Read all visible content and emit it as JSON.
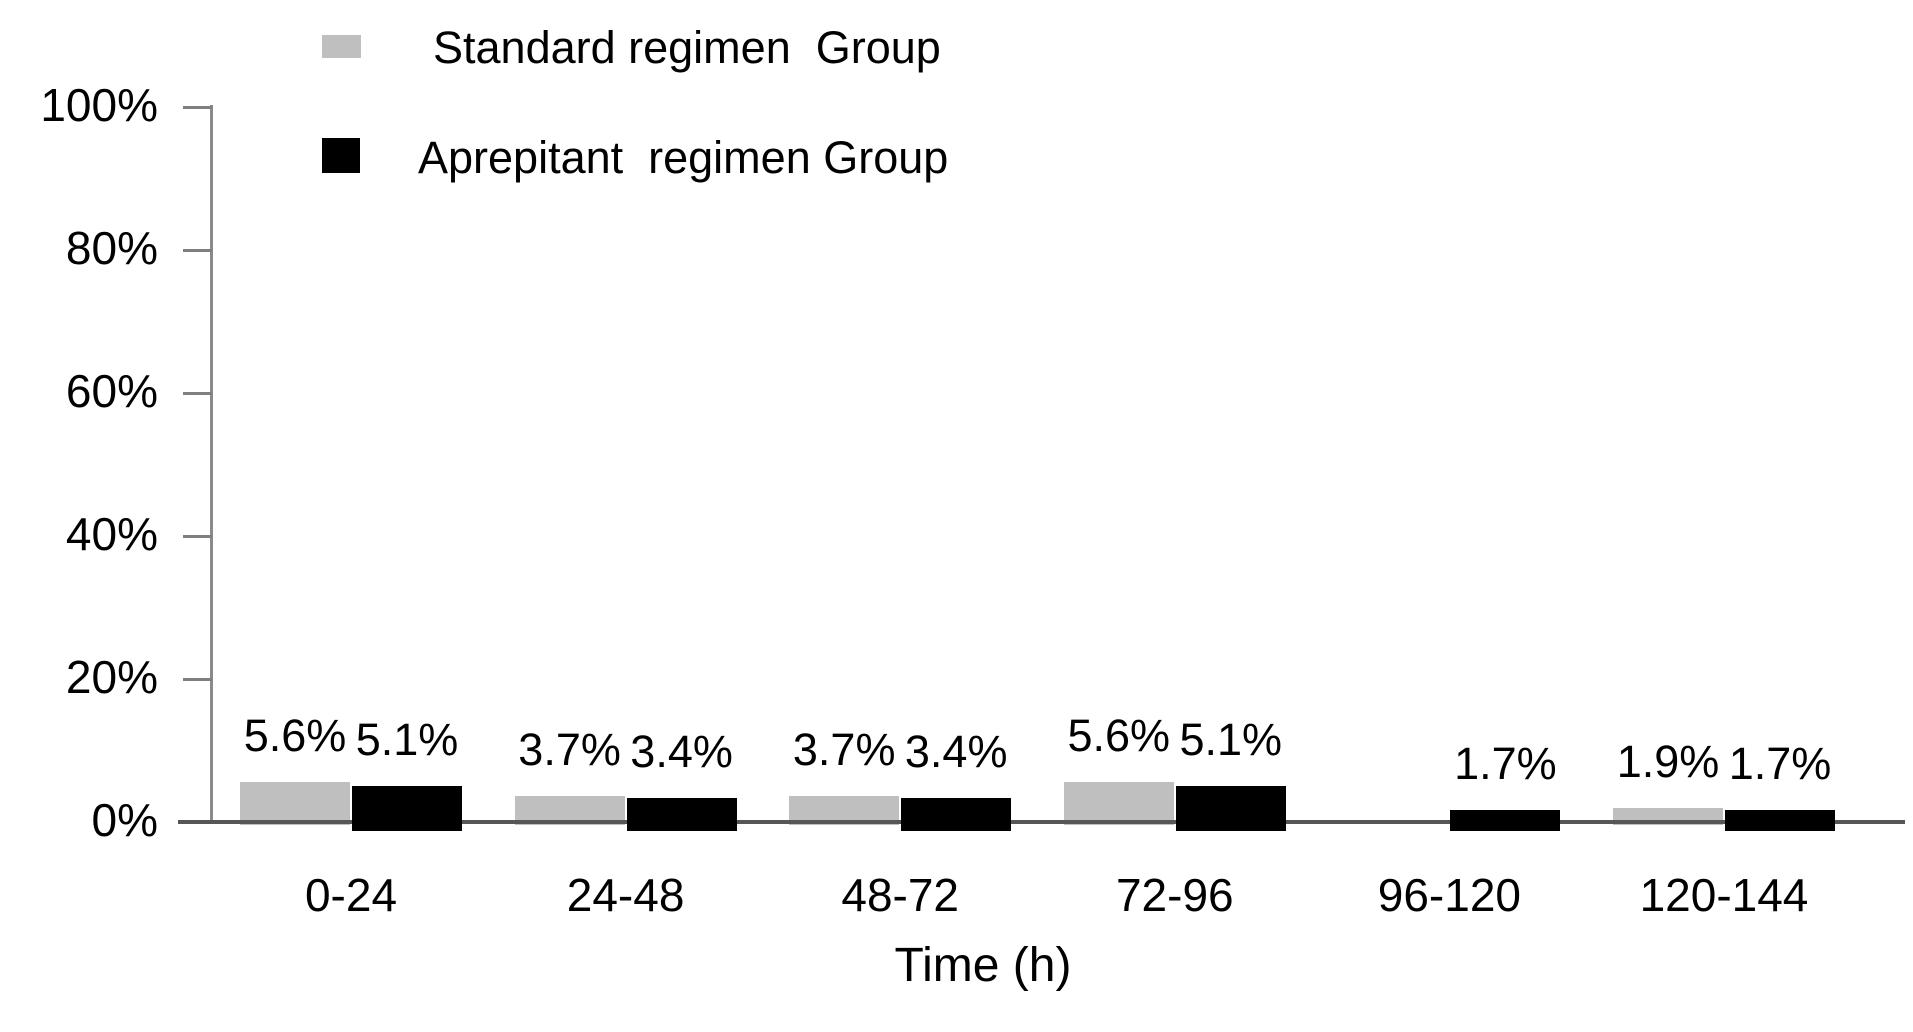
{
  "figure": {
    "background": "#ffffff"
  },
  "legend": {
    "items": [
      {
        "label": "Standard regimen  Group",
        "color": "#bfbfbf"
      },
      {
        "label": "Aprepitant  regimen Group",
        "color": "#000000"
      }
    ]
  },
  "colors": {
    "standard_bar": "#bfbfbf",
    "aprepitant_bar": "#000000",
    "x_axis_line": "#565656",
    "y_axis_line": "#8a8a8a",
    "tick_mark": "#7f7f7f",
    "text": "#000000"
  },
  "chart_data": {
    "type": "bar",
    "title": "",
    "xlabel": "Time (h)",
    "ylabel": "",
    "ylim": [
      0,
      100
    ],
    "grid": false,
    "legend_position": "top-left",
    "categories": [
      "0-24",
      "24-48",
      "48-72",
      "72-96",
      "96-120",
      "120-144"
    ],
    "yticks": [
      {
        "value": 0,
        "label": "0%"
      },
      {
        "value": 20,
        "label": "20%"
      },
      {
        "value": 40,
        "label": "40%"
      },
      {
        "value": 60,
        "label": "60%"
      },
      {
        "value": 80,
        "label": "80%"
      },
      {
        "value": 100,
        "label": "100%"
      }
    ],
    "series": [
      {
        "name": "Standard regimen Group",
        "key": "standard",
        "color": "#bfbfbf",
        "values": [
          5.6,
          3.7,
          3.7,
          5.6,
          0,
          1.9
        ],
        "labels": [
          "5.6%",
          "3.7%",
          "3.7%",
          "5.6%",
          "",
          "1.9%"
        ]
      },
      {
        "name": "Aprepitant regimen Group",
        "key": "aprepitant",
        "color": "#000000",
        "values": [
          5.1,
          3.4,
          3.4,
          5.1,
          1.7,
          1.7
        ],
        "labels": [
          "5.1%",
          "3.4%",
          "3.4%",
          "5.1%",
          "1.7%",
          "1.7%"
        ]
      }
    ]
  }
}
